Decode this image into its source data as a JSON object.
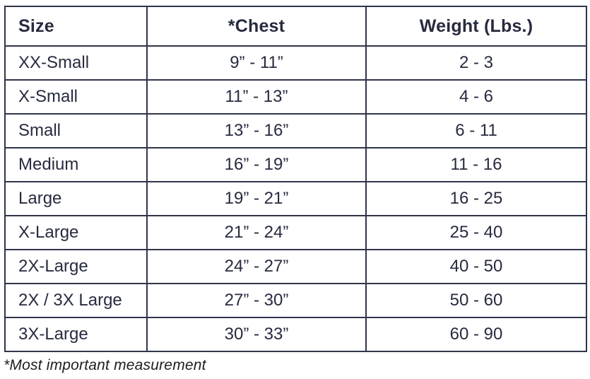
{
  "colors": {
    "text": "#272b3f",
    "border": "#30344a",
    "footnote": "#1e1e1e",
    "bg": "#ffffff"
  },
  "table": {
    "columns": [
      {
        "label": "Size"
      },
      {
        "label": "*Chest"
      },
      {
        "label": "Weight (Lbs.)"
      }
    ],
    "rows": [
      {
        "size": "XX-Small",
        "chest": "9” - 11”",
        "weight": "2 - 3"
      },
      {
        "size": "X-Small",
        "chest": "11” - 13”",
        "weight": "4 - 6"
      },
      {
        "size": "Small",
        "chest": "13” - 16”",
        "weight": "6 - 11"
      },
      {
        "size": "Medium",
        "chest": "16” - 19”",
        "weight": "11 - 16"
      },
      {
        "size": "Large",
        "chest": "19” - 21”",
        "weight": "16 - 25"
      },
      {
        "size": "X-Large",
        "chest": "21” - 24”",
        "weight": "25 - 40"
      },
      {
        "size": "2X-Large",
        "chest": "24” - 27”",
        "weight": "40 - 50"
      },
      {
        "size": "2X / 3X Large",
        "chest": "27” - 30”",
        "weight": "50 - 60"
      },
      {
        "size": "3X-Large",
        "chest": "30” - 33”",
        "weight": "60 - 90"
      }
    ]
  },
  "footnote": "*Most important measurement",
  "chart_data": {
    "type": "table",
    "title": "",
    "columns": [
      "Size",
      "*Chest",
      "Weight (Lbs.)"
    ],
    "rows": [
      [
        "XX-Small",
        "9” - 11”",
        "2 - 3"
      ],
      [
        "X-Small",
        "11” - 13”",
        "4 - 6"
      ],
      [
        "Small",
        "13” - 16”",
        "6 - 11"
      ],
      [
        "Medium",
        "16” - 19”",
        "11 - 16"
      ],
      [
        "Large",
        "19” - 21”",
        "16 - 25"
      ],
      [
        "X-Large",
        "21” - 24”",
        "25 - 40"
      ],
      [
        "2X-Large",
        "24” - 27”",
        "40 - 50"
      ],
      [
        "2X / 3X Large",
        "27” - 30”",
        "50 - 60"
      ],
      [
        "3X-Large",
        "30” - 33”",
        "60 - 90"
      ]
    ],
    "footnote": "*Most important measurement",
    "layout_hints": {
      "header_bold": true,
      "size_column_align": "left",
      "chest_column_align": "center",
      "weight_column_align": "center",
      "grid": true
    }
  }
}
